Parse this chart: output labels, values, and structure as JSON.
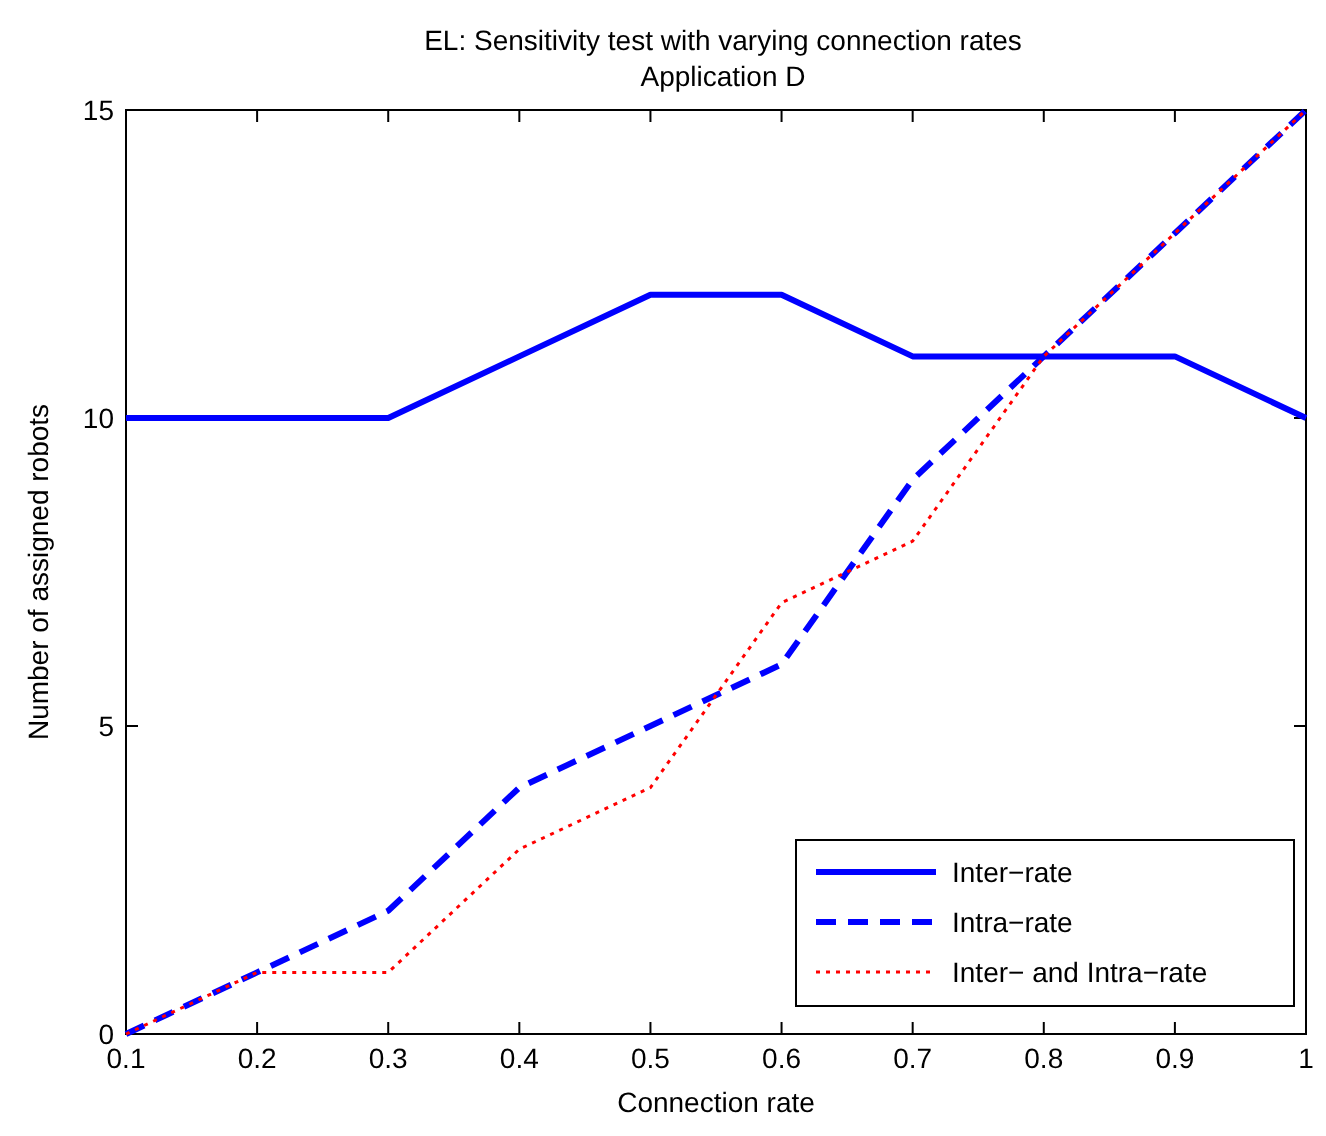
{
  "chart_data": {
    "type": "line",
    "title": "EL: Sensitivity test with varying connection rates",
    "subtitle": "Application D",
    "xlabel": "Connection rate",
    "ylabel": "Number of assigned robots",
    "x": [
      0.1,
      0.2,
      0.3,
      0.4,
      0.5,
      0.6,
      0.7,
      0.8,
      0.9,
      1
    ],
    "series": [
      {
        "name": "Inter−rate",
        "color": "#0000ff",
        "line_style": "solid",
        "values": [
          10,
          10,
          10,
          11,
          12,
          12,
          11,
          11,
          11,
          10
        ]
      },
      {
        "name": "Intra−rate",
        "color": "#0000ff",
        "line_style": "dashed",
        "values": [
          0,
          1,
          2,
          4,
          5,
          6,
          9,
          11,
          13,
          15
        ]
      },
      {
        "name": "Inter− and Intra−rate",
        "color": "#ff0000",
        "line_style": "dotted",
        "values": [
          0,
          1,
          1,
          3,
          4,
          7,
          8,
          11,
          13,
          15
        ]
      }
    ],
    "xlim": [
      0.1,
      1
    ],
    "xticks": [
      0.1,
      0.2,
      0.3,
      0.4,
      0.5,
      0.6,
      0.7,
      0.8,
      0.9,
      1
    ],
    "ylim": [
      0,
      15
    ],
    "yticks": [
      0,
      5,
      10,
      15
    ],
    "grid": false,
    "legend": "bottom right"
  }
}
